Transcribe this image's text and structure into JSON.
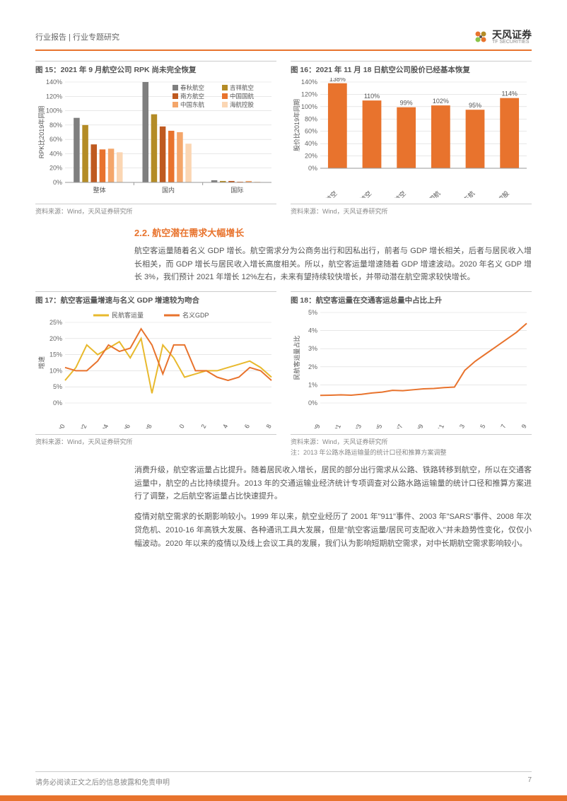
{
  "header": {
    "breadcrumb": "行业报告 | 行业专题研究",
    "brand_cn": "天风证券",
    "brand_en": "TF SECURITIES"
  },
  "colors": {
    "accent": "#e8732d",
    "text_body": "#555555",
    "text_muted": "#888888",
    "grid": "#d9d9d9"
  },
  "chart15": {
    "title": "图 15：2021 年 9 月航空公司 RPK 尚未完全恢复",
    "type": "bar-grouped",
    "ylabel": "RPK比2019年同期",
    "ylim": [
      0,
      140
    ],
    "ytick_step": 20,
    "categories": [
      "整体",
      "国内",
      "国际"
    ],
    "series": [
      {
        "name": "春秋航空",
        "color": "#7f7f7f",
        "values": [
          90,
          140,
          3
        ]
      },
      {
        "name": "吉祥航空",
        "color": "#b48c26",
        "values": [
          80,
          95,
          2
        ]
      },
      {
        "name": "南方航空",
        "color": "#bf5a20",
        "values": [
          53,
          78,
          2
        ]
      },
      {
        "name": "中国国航",
        "color": "#e8732d",
        "values": [
          46,
          72,
          1
        ]
      },
      {
        "name": "中国东航",
        "color": "#f4a66a",
        "values": [
          47,
          70,
          2
        ]
      },
      {
        "name": "海航控股",
        "color": "#fbd6b3",
        "values": [
          42,
          54,
          1
        ]
      }
    ],
    "bar_width": 0.7,
    "label_fontsize": 9,
    "source": "资料来源：Wind，天风证券研究所"
  },
  "chart16": {
    "title": "图 16：2021 年 11 月 18 日航空公司股价已经基本恢复",
    "type": "bar",
    "ylabel": "股价比2019年同期",
    "ylim": [
      0,
      140
    ],
    "ytick_step": 20,
    "categories": [
      "春秋航空",
      "吉祥航空",
      "南方航空",
      "中国国航",
      "中国东航",
      "海航控股"
    ],
    "values": [
      138,
      110,
      99,
      102,
      95,
      114
    ],
    "value_labels": [
      "138%",
      "110%",
      "99%",
      "102%",
      "95%",
      "114%"
    ],
    "bar_color": "#e8732d",
    "bar_width": 0.55,
    "label_fontsize": 9,
    "source": "资料来源：Wind，天风证券研究所"
  },
  "section": {
    "heading": "2.2. 航空潜在需求大幅增长",
    "heading_color": "#e8732d",
    "para1": "航空客运量随着名义 GDP 增长。航空需求分为公商务出行和因私出行，前者与 GDP 增长相关，后者与居民收入增长相关，而 GDP 增长与居民收入增长高度相关。所以，航空客运量增速随着 GDP 增速波动。2020 年名义 GDP 增长 3%，我们预计 2021 年增长 12%左右，未来有望持续较快增长，并带动潜在航空需求较快增长。"
  },
  "chart17": {
    "title": "图 17：航空客运量增速与名义 GDP 增速较为吻合",
    "type": "line",
    "ylabel": "增速",
    "ylim": [
      0,
      25
    ],
    "ytick_step": 5,
    "ytick_suffix": "%",
    "x_categories": [
      "2000",
      "2002",
      "2004",
      "2006",
      "2008",
      "2010",
      "2012",
      "2014",
      "2016",
      "2018"
    ],
    "series": [
      {
        "name": "民航客运量",
        "color": "#e8b92d",
        "width": 2,
        "values": [
          7,
          11,
          18,
          15,
          17,
          19,
          14,
          20,
          3,
          18,
          14,
          8,
          9,
          10,
          10,
          11,
          12,
          13,
          11,
          8
        ]
      },
      {
        "name": "名义GDP",
        "color": "#e8732d",
        "width": 2,
        "values": [
          11,
          10,
          10,
          13,
          18,
          16,
          17,
          23,
          18,
          9,
          18,
          18,
          10,
          10,
          8,
          7,
          8,
          11,
          10,
          7
        ]
      }
    ],
    "label_fontsize": 9,
    "source": "资料来源：Wind，天风证券研究所"
  },
  "chart18": {
    "title": "图 18：航空客运量在交通客运总量中占比上升",
    "type": "line",
    "ylabel": "民航客运量占比",
    "ylim": [
      0,
      5
    ],
    "ytick_step": 1,
    "ytick_suffix": "%",
    "x_categories": [
      "1999",
      "2001",
      "2003",
      "2005",
      "2007",
      "2009",
      "2011",
      "2013",
      "2015",
      "2017",
      "2019"
    ],
    "series": [
      {
        "name": "占比",
        "color": "#e8732d",
        "width": 2,
        "values": [
          0.42,
          0.43,
          0.45,
          0.43,
          0.48,
          0.55,
          0.6,
          0.7,
          0.68,
          0.73,
          0.78,
          0.8,
          0.85,
          0.88,
          1.8,
          2.3,
          2.7,
          3.1,
          3.5,
          3.9,
          4.4
        ]
      }
    ],
    "label_fontsize": 9,
    "source": "资料来源：Wind，天风证券研究所",
    "note": "注：2013 年公路水路运输量的统计口径和推算方案调整"
  },
  "para2": "消费升级，航空客运量占比提升。随着居民收入增长，居民的部分出行需求从公路、铁路转移到航空，所以在交通客运量中，航空的占比持续提升。2013 年的交通运输业经济统计专项调查对公路水路运输量的统计口径和推算方案进行了调整，之后航空客运量占比快速提升。",
  "para3": "疫情对航空需求的长期影响较小。1999 年以来，航空业经历了 2001 年\"911\"事件、2003 年\"SARS\"事件、2008 年次贷危机、2010-16 年高铁大发展、各种通讯工具大发展，但是\"航空客运量/居民可支配收入\"并未趋势性变化，仅仅小幅波动。2020 年以来的疫情以及线上会议工具的发展，我们认为影响短期航空需求，对中长期航空需求影响较小。",
  "footer": {
    "disclaimer": "请务必阅读正文之后的信息披露和免责申明",
    "page": "7"
  }
}
